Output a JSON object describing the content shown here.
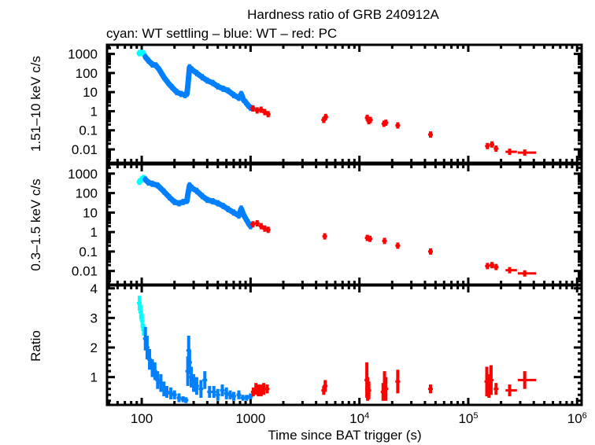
{
  "chart_data": [
    {
      "type": "scatter",
      "panel": "top",
      "title": "Hardness ratio of GRB 240912A",
      "subtitle": "cyan: WT settling – blue: WT – red: PC",
      "ylabel": "1.51–10 keV c/s",
      "yscale": "log",
      "ylim": [
        0.002,
        3000
      ],
      "yticks": [
        1000,
        100,
        10,
        1,
        0.1,
        0.01
      ],
      "ytick_labels": [
        "1000",
        "100",
        "10",
        "1",
        "0.1",
        "0.01"
      ],
      "xscale": "log",
      "xlim": [
        48,
        1100000
      ],
      "series": [
        {
          "name": "WT settling",
          "color": "#00ffff",
          "x": [
            95,
            100,
            104
          ],
          "y": [
            1100,
            1150,
            1050
          ]
        },
        {
          "name": "WT",
          "color": "#0080ff",
          "x": [
            108,
            115,
            125,
            135,
            145,
            160,
            175,
            190,
            210,
            230,
            250,
            260,
            265,
            275,
            290,
            320,
            360,
            400,
            450,
            500,
            560,
            620,
            700,
            780,
            820,
            860,
            900,
            950,
            1000,
            1050
          ],
          "y": [
            700,
            450,
            280,
            250,
            150,
            60,
            30,
            18,
            10,
            8,
            7,
            8,
            20,
            200,
            150,
            100,
            60,
            40,
            30,
            20,
            15,
            12,
            7,
            5,
            8,
            4,
            3,
            2,
            1.5,
            1.4
          ]
        },
        {
          "name": "PC",
          "color": "#ff0000",
          "x": [
            1050,
            1150,
            1250,
            1350,
            1450,
            4700,
            4900,
            11800,
            12200,
            12600,
            16800,
            17500,
            22500,
            45000,
            150000,
            165000,
            180000,
            240000,
            330000
          ],
          "y": [
            1.4,
            1.1,
            1.2,
            0.9,
            0.7,
            0.35,
            0.5,
            0.45,
            0.3,
            0.35,
            0.22,
            0.25,
            0.18,
            0.06,
            0.015,
            0.018,
            0.011,
            0.0075,
            0.0068
          ],
          "xerr": [
            0,
            0,
            0,
            0,
            0,
            0,
            0,
            0,
            0,
            0,
            0,
            0,
            0,
            0,
            0,
            0,
            0,
            40000,
            90000
          ]
        }
      ]
    },
    {
      "type": "scatter",
      "panel": "middle",
      "ylabel": "0.3–1.5 keV c/s",
      "yscale": "log",
      "ylim": [
        0.002,
        3000
      ],
      "yticks": [
        1000,
        100,
        10,
        1,
        0.1,
        0.01
      ],
      "ytick_labels": [
        "1000",
        "100",
        "10",
        "1",
        "0.1",
        "0.01"
      ],
      "xscale": "log",
      "xlim": [
        48,
        1100000
      ],
      "series": [
        {
          "name": "WT settling",
          "color": "#00ffff",
          "x": [
            95,
            100,
            104
          ],
          "y": [
            380,
            500,
            600
          ]
        },
        {
          "name": "WT",
          "color": "#0080ff",
          "x": [
            108,
            115,
            125,
            140,
            160,
            180,
            200,
            220,
            240,
            260,
            265,
            275,
            290,
            320,
            360,
            400,
            450,
            500,
            560,
            620,
            700,
            780,
            820,
            860,
            900,
            950,
            1000
          ],
          "y": [
            500,
            350,
            300,
            250,
            120,
            60,
            35,
            30,
            35,
            40,
            80,
            250,
            180,
            130,
            70,
            45,
            38,
            30,
            22,
            15,
            10,
            7,
            16,
            8,
            5,
            3,
            2
          ]
        },
        {
          "name": "PC",
          "color": "#ff0000",
          "x": [
            1050,
            1150,
            1250,
            1350,
            1450,
            4800,
            11800,
            12500,
            17000,
            22500,
            45000,
            150000,
            165000,
            180000,
            240000,
            330000
          ],
          "y": [
            2.5,
            2.8,
            2.0,
            1.5,
            1.3,
            0.6,
            0.5,
            0.45,
            0.35,
            0.2,
            0.1,
            0.018,
            0.02,
            0.016,
            0.011,
            0.0075
          ],
          "xerr": [
            0,
            0,
            0,
            0,
            0,
            0,
            0,
            0,
            0,
            0,
            0,
            0,
            0,
            0,
            40000,
            90000
          ]
        }
      ]
    },
    {
      "type": "scatter",
      "panel": "bottom",
      "ylabel": "Ratio",
      "xlabel": "Time since BAT trigger (s)",
      "yscale": "linear",
      "ylim": [
        0.06,
        4.1
      ],
      "yticks": [
        1,
        2,
        3,
        4
      ],
      "ytick_labels": [
        "1",
        "2",
        "3",
        "4"
      ],
      "xscale": "log",
      "xlim": [
        48,
        1100000
      ],
      "xticks": [
        100,
        1000,
        10000,
        100000,
        1000000
      ],
      "xtick_labels": [
        {
          "base": "100",
          "exp": ""
        },
        {
          "base": "1000",
          "exp": ""
        },
        {
          "base": "10",
          "exp": "4"
        },
        {
          "base": "10",
          "exp": "5"
        },
        {
          "base": "10",
          "exp": "6"
        }
      ],
      "series": [
        {
          "name": "WT settling",
          "color": "#00ffff",
          "x": [
            95,
            98,
            101,
            104
          ],
          "y": [
            3.5,
            3.2,
            2.9,
            2.6
          ],
          "yerr": [
            0.25,
            0.25,
            0.25,
            0.2
          ]
        },
        {
          "name": "WT",
          "color": "#0080ff",
          "x": [
            108,
            112,
            118,
            125,
            132,
            140,
            150,
            160,
            170,
            185,
            200,
            220,
            240,
            255,
            265,
            270,
            275,
            285,
            300,
            320,
            350,
            380,
            420,
            460,
            500,
            550,
            600,
            650,
            700,
            780,
            850,
            920,
            1000
          ],
          "y": [
            2.3,
            2.0,
            1.6,
            1.3,
            1.2,
            0.9,
            0.8,
            0.6,
            0.5,
            0.45,
            0.4,
            0.3,
            0.25,
            0.22,
            1.2,
            1.9,
            1.5,
            1.0,
            0.8,
            0.7,
            0.6,
            0.9,
            0.5,
            0.5,
            0.4,
            0.55,
            0.45,
            0.4,
            0.35,
            0.4,
            0.3,
            0.3,
            0.35
          ],
          "yerr": [
            0.4,
            0.4,
            0.35,
            0.3,
            0.3,
            0.3,
            0.3,
            0.25,
            0.2,
            0.2,
            0.15,
            0.15,
            0.1,
            0.1,
            0.5,
            0.5,
            0.4,
            0.35,
            0.3,
            0.3,
            0.3,
            0.3,
            0.2,
            0.2,
            0.2,
            0.2,
            0.2,
            0.15,
            0.15,
            0.15,
            0.1,
            0.1,
            0.1
          ]
        },
        {
          "name": "PC",
          "color": "#ff0000",
          "x": [
            1060,
            1120,
            1180,
            1250,
            1320,
            1420,
            4700,
            4850,
            11700,
            11900,
            12200,
            16500,
            17000,
            17500,
            22500,
            45000,
            148000,
            155000,
            162000,
            180000,
            240000,
            330000
          ],
          "y": [
            0.5,
            0.6,
            0.55,
            0.55,
            0.6,
            0.6,
            0.55,
            0.7,
            0.9,
            0.6,
            0.55,
            0.5,
            0.7,
            0.6,
            0.85,
            0.6,
            0.85,
            0.7,
            0.9,
            0.6,
            0.55,
            0.9
          ],
          "yerr": [
            0.15,
            0.2,
            0.2,
            0.2,
            0.2,
            0.15,
            0.15,
            0.2,
            0.6,
            0.4,
            0.3,
            0.3,
            0.5,
            0.4,
            0.4,
            0.15,
            0.5,
            0.4,
            0.5,
            0.2,
            0.2,
            0.3
          ],
          "xerr": [
            0,
            0,
            0,
            0,
            0,
            0,
            0,
            0,
            0,
            0,
            0,
            0,
            0,
            0,
            0,
            0,
            0,
            0,
            0,
            0,
            40000,
            90000
          ]
        }
      ]
    }
  ]
}
